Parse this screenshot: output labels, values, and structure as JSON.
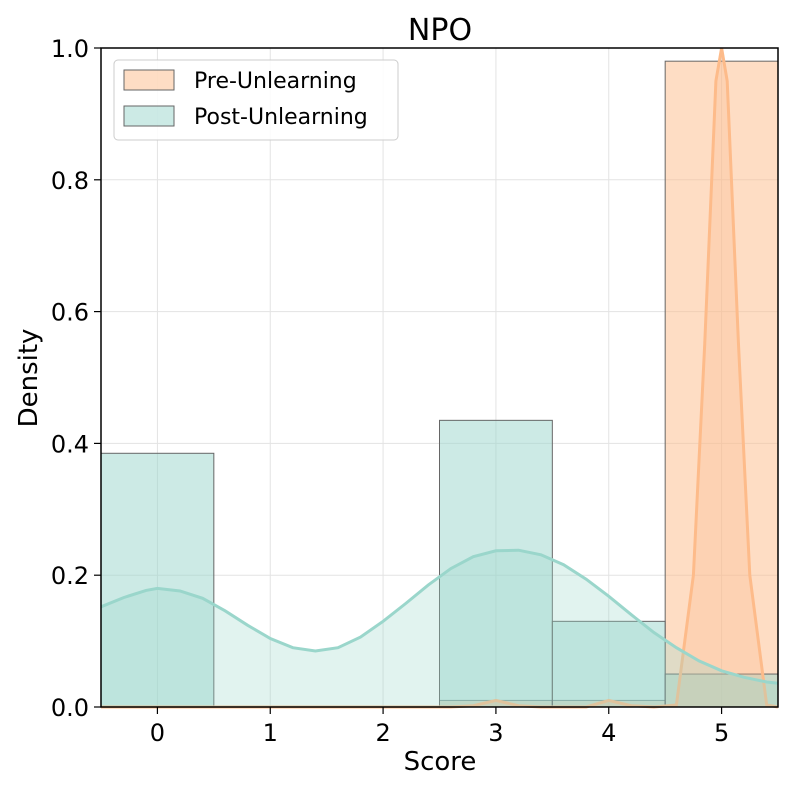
{
  "chart_data": {
    "type": "bar",
    "title": "NPO",
    "xlabel": "Score",
    "ylabel": "Density",
    "xlim": [
      -0.5,
      5.5
    ],
    "ylim": [
      0,
      1.0
    ],
    "xticks": [
      "0",
      "1",
      "2",
      "3",
      "4",
      "5"
    ],
    "yticks": [
      "0.0",
      "0.2",
      "0.4",
      "0.6",
      "0.8",
      "1.0"
    ],
    "grid": true,
    "legend_position": "top-left",
    "series": [
      {
        "name": "Pre-Unlearning",
        "color": "#fdbb8a",
        "categories": [
          0,
          1,
          2,
          3,
          4,
          5
        ],
        "values": [
          0.0,
          0.0,
          0.0,
          0.01,
          0.01,
          0.98
        ],
        "kde": [
          [
            -0.5,
            0
          ],
          [
            2.6,
            0
          ],
          [
            2.8,
            0.002
          ],
          [
            3.0,
            0.01
          ],
          [
            3.2,
            0.002
          ],
          [
            3.4,
            0
          ],
          [
            3.8,
            0
          ],
          [
            4.0,
            0.01
          ],
          [
            4.2,
            0.002
          ],
          [
            4.4,
            0
          ],
          [
            4.6,
            0.003
          ],
          [
            4.75,
            0.2
          ],
          [
            4.85,
            0.55
          ],
          [
            4.95,
            0.95
          ],
          [
            5.0,
            1.0
          ],
          [
            5.05,
            0.95
          ],
          [
            5.15,
            0.55
          ],
          [
            5.25,
            0.2
          ],
          [
            5.4,
            0.003
          ],
          [
            5.5,
            0
          ]
        ]
      },
      {
        "name": "Post-Unlearning",
        "color": "#9ad6cb",
        "categories": [
          0,
          1,
          2,
          3,
          4,
          5
        ],
        "values": [
          0.385,
          0.0,
          0.0,
          0.435,
          0.13,
          0.05
        ],
        "kde": [
          [
            -0.5,
            0.152
          ],
          [
            -0.3,
            0.166
          ],
          [
            -0.1,
            0.177
          ],
          [
            0.0,
            0.18
          ],
          [
            0.2,
            0.176
          ],
          [
            0.4,
            0.165
          ],
          [
            0.6,
            0.146
          ],
          [
            0.8,
            0.124
          ],
          [
            1.0,
            0.104
          ],
          [
            1.2,
            0.09
          ],
          [
            1.4,
            0.085
          ],
          [
            1.6,
            0.09
          ],
          [
            1.8,
            0.106
          ],
          [
            2.0,
            0.13
          ],
          [
            2.2,
            0.157
          ],
          [
            2.4,
            0.185
          ],
          [
            2.6,
            0.21
          ],
          [
            2.8,
            0.228
          ],
          [
            3.0,
            0.237
          ],
          [
            3.2,
            0.238
          ],
          [
            3.4,
            0.231
          ],
          [
            3.6,
            0.216
          ],
          [
            3.8,
            0.194
          ],
          [
            4.0,
            0.168
          ],
          [
            4.2,
            0.14
          ],
          [
            4.4,
            0.113
          ],
          [
            4.6,
            0.09
          ],
          [
            4.8,
            0.07
          ],
          [
            5.0,
            0.055
          ],
          [
            5.2,
            0.045
          ],
          [
            5.4,
            0.038
          ],
          [
            5.5,
            0.036
          ]
        ]
      }
    ]
  }
}
